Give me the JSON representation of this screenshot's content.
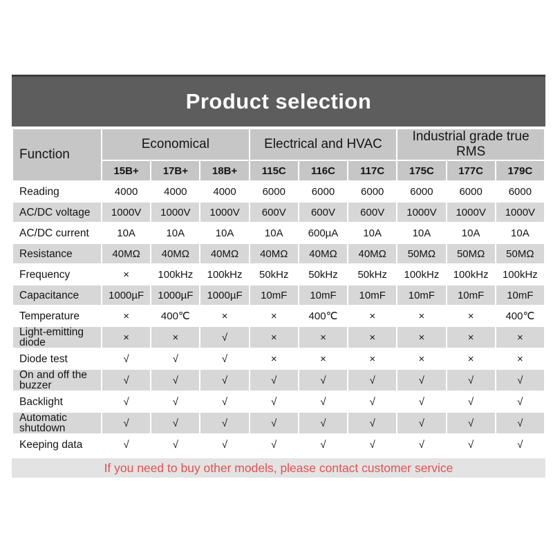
{
  "title": "Product selection",
  "table": {
    "function_header": "Function",
    "groups": [
      {
        "label": "Economical",
        "models": [
          "15B+",
          "17B+",
          "18B+"
        ]
      },
      {
        "label": "Electrical and HVAC",
        "models": [
          "115C",
          "116C",
          "117C"
        ]
      },
      {
        "label": "Industrial grade true RMS",
        "models": [
          "175C",
          "177C",
          "179C"
        ]
      }
    ],
    "rows": [
      {
        "label": "Reading",
        "values": [
          "4000",
          "4000",
          "4000",
          "6000",
          "6000",
          "6000",
          "6000",
          "6000",
          "6000"
        ]
      },
      {
        "label": "AC/DC voltage",
        "values": [
          "1000V",
          "1000V",
          "1000V",
          "600V",
          "600V",
          "600V",
          "1000V",
          "1000V",
          "1000V"
        ]
      },
      {
        "label": "AC/DC current",
        "values": [
          "10A",
          "10A",
          "10A",
          "10A",
          "600µA",
          "10A",
          "10A",
          "10A",
          "10A"
        ]
      },
      {
        "label": "Resistance",
        "values": [
          "40MΩ",
          "40MΩ",
          "40MΩ",
          "40MΩ",
          "40MΩ",
          "40MΩ",
          "50MΩ",
          "50MΩ",
          "50MΩ"
        ]
      },
      {
        "label": "Frequency",
        "values": [
          "×",
          "100kHz",
          "100kHz",
          "50kHz",
          "50kHz",
          "50kHz",
          "100kHz",
          "100kHz",
          "100kHz"
        ]
      },
      {
        "label": "Capacitance",
        "values": [
          "1000µF",
          "1000µF",
          "1000µF",
          "10mF",
          "10mF",
          "10mF",
          "10mF",
          "10mF",
          "10mF"
        ]
      },
      {
        "label": "Temperature",
        "values": [
          "×",
          "400℃",
          "×",
          "×",
          "400℃",
          "×",
          "×",
          "×",
          "400℃"
        ]
      },
      {
        "label": "Light-emitting diode",
        "values": [
          "×",
          "×",
          "√",
          "×",
          "×",
          "×",
          "×",
          "×",
          "×"
        ]
      },
      {
        "label": "Diode test",
        "values": [
          "√",
          "√",
          "√",
          "×",
          "×",
          "×",
          "×",
          "×",
          "×"
        ]
      },
      {
        "label": "On and off the buzzer",
        "values": [
          "√",
          "√",
          "√",
          "√",
          "√",
          "√",
          "√",
          "√",
          "√"
        ]
      },
      {
        "label": "Backlight",
        "values": [
          "√",
          "√",
          "√",
          "√",
          "√",
          "√",
          "√",
          "√",
          "√"
        ]
      },
      {
        "label": "Automatic shutdown",
        "values": [
          "√",
          "√",
          "√",
          "√",
          "√",
          "√",
          "√",
          "√",
          "√"
        ]
      },
      {
        "label": "Keeping data",
        "values": [
          "√",
          "√",
          "√",
          "√",
          "√",
          "√",
          "√",
          "√",
          "√"
        ]
      }
    ]
  },
  "footer_note": "If you need to buy other models, please contact customer service",
  "colors": {
    "title_bar_bg": "#5d5d5d",
    "title_bar_border": "#3b3b3b",
    "header_cell_bg": "#c6c6c6",
    "alt_row_bg": "#d7d7d7",
    "footer_bg": "#e3e3e3",
    "footer_text": "#e05252",
    "text": "#141414"
  }
}
